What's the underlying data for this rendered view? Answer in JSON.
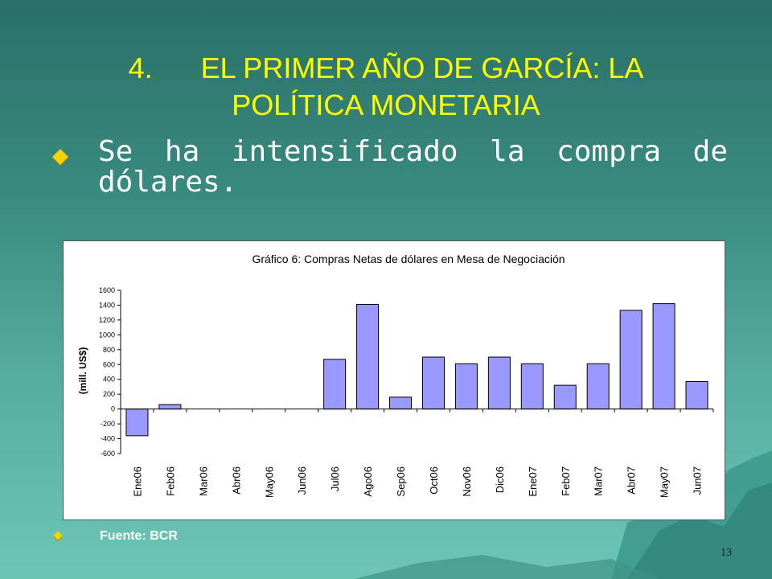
{
  "slide": {
    "title_number": "4.",
    "title_line1": "EL PRIMER AÑO DE GARCÍA: LA",
    "title_line2": "POLÍTICA MONETARIA",
    "bullet_text": "Se ha intensificado la compra de dólares.",
    "source_text": "Fuente: BCR",
    "page_number": "13"
  },
  "colors": {
    "title": "#ffff00",
    "bullet": "#f2d400",
    "bar_fill": "#9999ff",
    "bar_stroke": "#000000"
  },
  "chart_data": {
    "type": "bar",
    "title": "Gráfico 6: Compras Netas de dólares en Mesa de Negociación",
    "xlabel": "",
    "ylabel": "(mill. US$)",
    "categories": [
      "Ene06",
      "Feb06",
      "Mar06",
      "Abr06",
      "May06",
      "Jun06",
      "Jul06",
      "Ago06",
      "Sep06",
      "Oct06",
      "Nov06",
      "Dic06",
      "Ene07",
      "Feb07",
      "Mar07",
      "Abr07",
      "May07",
      "Jun07"
    ],
    "values": [
      -360,
      60,
      0,
      0,
      0,
      0,
      670,
      1410,
      160,
      700,
      610,
      700,
      610,
      320,
      610,
      1330,
      1420,
      370
    ],
    "ylim": [
      -600,
      1600
    ],
    "yticks": [
      1600,
      1400,
      1200,
      1000,
      800,
      600,
      400,
      200,
      0,
      -200,
      -400,
      -600
    ],
    "grid": false,
    "legend": "none"
  }
}
